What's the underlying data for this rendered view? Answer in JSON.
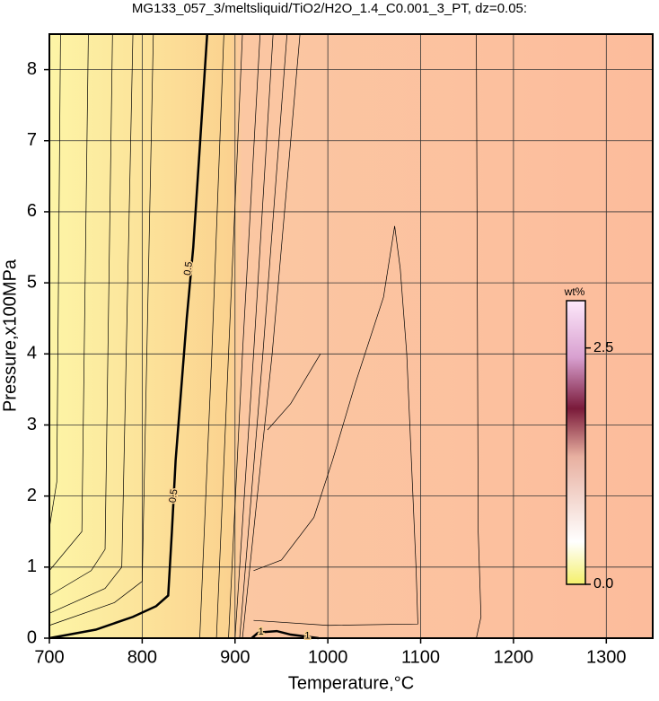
{
  "chart_data": {
    "type": "contour",
    "title": "MG133_057_3/meltsliquid/TiO2/H2O_1.4_C0.001_3_PT, dz=0.05:",
    "x_label": "Temperature,°C",
    "y_label": "Pressure,x100MPa",
    "xlim": [
      700,
      1350
    ],
    "ylim": [
      0,
      8.5
    ],
    "xticks": [
      700,
      800,
      900,
      1000,
      1100,
      1200,
      1300
    ],
    "yticks": [
      0,
      1,
      2,
      3,
      4,
      5,
      6,
      7,
      8
    ],
    "grid": true,
    "colorbar": {
      "label": "wt%",
      "clim": [
        0,
        3
      ],
      "ticks": [
        {
          "value": 0,
          "label": "0.0"
        },
        {
          "value": 2.5,
          "label": "2.5"
        }
      ]
    },
    "contours": [
      {
        "bold": true,
        "x": [
          700,
          750,
          790,
          815,
          828,
          832,
          836,
          842,
          848,
          855,
          860,
          865,
          870
        ],
        "y": [
          0,
          0.12,
          0.3,
          0.45,
          0.6,
          1.5,
          2.5,
          3.5,
          4.5,
          5.5,
          6.5,
          7.5,
          8.5
        ]
      },
      {
        "x": [
          700,
          708,
          712
        ],
        "y": [
          1.55,
          2.2,
          8.5
        ]
      },
      {
        "x": [
          700,
          735,
          742
        ],
        "y": [
          0.95,
          1.5,
          8.5
        ]
      },
      {
        "x": [
          700,
          745,
          760,
          768
        ],
        "y": [
          0.6,
          0.95,
          1.25,
          8.5
        ]
      },
      {
        "x": [
          700,
          760,
          778,
          790
        ],
        "y": [
          0.35,
          0.7,
          1.0,
          8.5
        ]
      },
      {
        "x": [
          700,
          770,
          800,
          812
        ],
        "y": [
          0.18,
          0.5,
          0.8,
          8.5
        ]
      },
      {
        "x": [
          862,
          875,
          888
        ],
        "y": [
          0,
          4,
          8.5
        ]
      },
      {
        "x": [
          880,
          893,
          908
        ],
        "y": [
          0,
          4,
          8.5
        ]
      },
      {
        "x": [
          893,
          908,
          927
        ],
        "y": [
          0,
          4,
          8.5
        ]
      },
      {
        "x": [
          900,
          920,
          941
        ],
        "y": [
          0,
          4,
          8.5
        ]
      },
      {
        "x": [
          905,
          930,
          956
        ],
        "y": [
          0,
          4,
          8.5
        ]
      },
      {
        "x": [
          908,
          940,
          970
        ],
        "y": [
          0,
          4,
          8.5
        ]
      },
      {
        "x": [
          920,
          950,
          985,
          1000,
          1005,
          1030,
          1060,
          1072,
          1078,
          1085,
          1090,
          1095,
          1097,
          1000,
          920
        ],
        "y": [
          0.95,
          1.1,
          1.7,
          2.3,
          2.5,
          3.6,
          4.8,
          5.8,
          5.2,
          4.0,
          2.5,
          1.0,
          0.2,
          0.18,
          0.25
        ]
      },
      {
        "x": [
          935,
          960,
          992
        ],
        "y": [
          2.93,
          3.3,
          4.0
        ]
      },
      {
        "x": [
          1160,
          1165,
          1162,
          1160
        ],
        "y": [
          0,
          0.3,
          1.5,
          8.5
        ]
      },
      {
        "bold": true,
        "x": [
          918,
          925,
          945,
          960,
          990
        ],
        "y": [
          0.0,
          0.08,
          0.1,
          0.05,
          0.0
        ]
      }
    ],
    "annotations": [
      {
        "text": "0.5",
        "x": 850,
        "y": 5.2
      },
      {
        "text": "0.5",
        "x": 834,
        "y": 2.0
      },
      {
        "text": "1",
        "x": 928,
        "y": 0.09
      },
      {
        "text": "1",
        "x": 978,
        "y": 0.03
      }
    ]
  }
}
